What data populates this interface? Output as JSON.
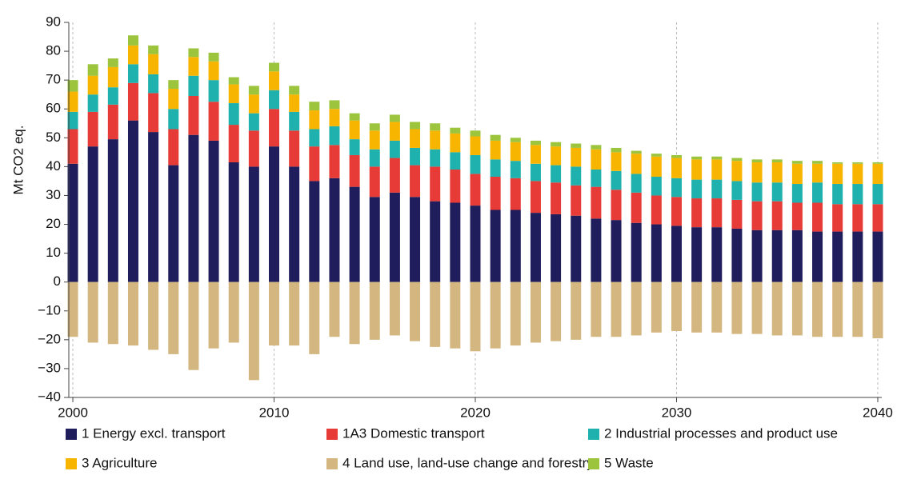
{
  "chart_data": {
    "type": "stacked_bar",
    "ylabel": "Mt CO2 eq.",
    "x": [
      2000,
      2001,
      2002,
      2003,
      2004,
      2005,
      2006,
      2007,
      2008,
      2009,
      2010,
      2011,
      2012,
      2013,
      2014,
      2015,
      2016,
      2017,
      2018,
      2019,
      2020,
      2021,
      2022,
      2023,
      2024,
      2025,
      2026,
      2027,
      2028,
      2029,
      2030,
      2031,
      2032,
      2033,
      2034,
      2035,
      2036,
      2037,
      2038,
      2039,
      2040
    ],
    "xlim": [
      1999.8,
      2040.2
    ],
    "xticks": [
      2000,
      2010,
      2020,
      2030,
      2040
    ],
    "ylim": [
      -40,
      90
    ],
    "yticks": [
      {
        "value": -40,
        "label": "−40"
      },
      {
        "value": -30,
        "label": "−30"
      },
      {
        "value": -20,
        "label": "−20"
      },
      {
        "value": -10,
        "label": "−10"
      },
      0,
      10,
      20,
      30,
      40,
      50,
      60,
      70,
      80,
      90
    ],
    "grid": true,
    "series": [
      {
        "name": "1 Energy excl. transport",
        "color": "#1f1d5c",
        "values": [
          41,
          47,
          49.5,
          56,
          52,
          40.5,
          51,
          49,
          41.5,
          40,
          47,
          40,
          35,
          36,
          33,
          29.5,
          31,
          29.5,
          28,
          27.5,
          26.5,
          25,
          25,
          24,
          23.5,
          23,
          22,
          21.5,
          20.5,
          20,
          19.5,
          19,
          19,
          18.5,
          18,
          18,
          18,
          17.5,
          17.5,
          17.5,
          17.5
        ]
      },
      {
        "name": "1A3 Domestic transport",
        "color": "#e63b36",
        "values": [
          12,
          12,
          12,
          13,
          13.5,
          12.5,
          13.5,
          13.5,
          13,
          12.5,
          13,
          12.5,
          12,
          11.5,
          11,
          10.5,
          12,
          11,
          12,
          11.5,
          11,
          11.5,
          11,
          11,
          11,
          10.5,
          11,
          10.5,
          10.5,
          10,
          10,
          10,
          10,
          10,
          10,
          10,
          9.5,
          10,
          9.5,
          9.5,
          9.5
        ]
      },
      {
        "name": "2 Industrial processes and product use",
        "color": "#1fb1ad",
        "values": [
          6,
          6,
          6,
          6.5,
          6.5,
          7,
          7,
          7.5,
          7.5,
          6,
          6.5,
          6.5,
          6,
          6.5,
          5.5,
          6,
          6,
          6,
          6,
          6,
          6.5,
          6,
          6,
          6,
          6,
          6.5,
          6,
          6.5,
          6.5,
          6.5,
          6.5,
          6.5,
          6.5,
          6.5,
          6.5,
          6.5,
          6.5,
          7,
          7,
          7,
          7
        ]
      },
      {
        "name": "3 Agriculture",
        "color": "#f7b500",
        "values": [
          7,
          6.5,
          7,
          6.5,
          7,
          7,
          6.5,
          6.5,
          6.5,
          6.5,
          6.5,
          6,
          6.5,
          6,
          6.5,
          6.5,
          6.5,
          6.5,
          6.5,
          6.5,
          6.5,
          6.5,
          6.5,
          6.5,
          6.5,
          6.5,
          7,
          6.5,
          7,
          7,
          7,
          7,
          7,
          7,
          7,
          7,
          7,
          6.5,
          7,
          7,
          7
        ]
      },
      {
        "name": "4 Land use, land-use change and forestry",
        "color": "#d4b680",
        "values": [
          -19,
          -21,
          -21.5,
          -22,
          -23.5,
          -25,
          -30.5,
          -23,
          -21,
          -34,
          -22,
          -22,
          -25,
          -19,
          -21.5,
          -20,
          -18.5,
          -20.5,
          -22.5,
          -23,
          -24,
          -23,
          -22,
          -21,
          -20.5,
          -20,
          -19,
          -19,
          -18.5,
          -17.5,
          -17,
          -17.5,
          -17.5,
          -18,
          -18,
          -18.5,
          -18.5,
          -19,
          -19,
          -19,
          -19.5
        ]
      },
      {
        "name": "5 Waste",
        "color": "#9cc43d",
        "values": [
          4,
          4,
          3,
          3.5,
          3,
          3,
          3,
          3,
          2.5,
          3,
          3,
          3,
          3,
          3,
          2.5,
          2.5,
          2.5,
          2.5,
          2.5,
          2,
          2,
          2,
          1.5,
          1.5,
          1.5,
          1.5,
          1.5,
          1.5,
          1,
          1,
          1,
          1,
          1,
          1,
          1,
          1,
          1,
          1,
          0.5,
          0.5,
          0.5
        ]
      }
    ]
  }
}
